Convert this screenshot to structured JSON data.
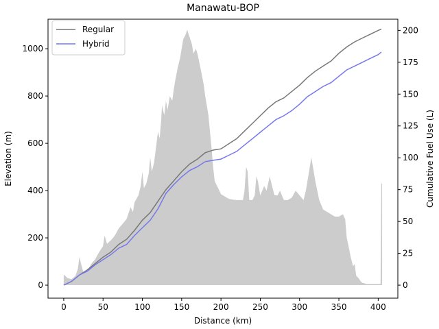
{
  "chart_data": {
    "type": "line",
    "title": "Manawatu-BOP",
    "xlabel": "Distance (km)",
    "ylabel_left": "Elevation (m)",
    "ylabel_right": "Cumulative Fuel Use (L)",
    "xlim": [
      -20,
      425
    ],
    "ylim_left": [
      -55,
      1125
    ],
    "ylim_right": [
      -10.2,
      208.8
    ],
    "x_ticks": [
      0,
      50,
      100,
      150,
      200,
      250,
      300,
      350,
      400
    ],
    "y_ticks_left": [
      0,
      200,
      400,
      600,
      800,
      1000
    ],
    "y_ticks_right": [
      0,
      25,
      50,
      75,
      100,
      125,
      150,
      175,
      200
    ],
    "grid": false,
    "legend_position": "top-left",
    "elevation_profile": {
      "color": "#cccccc",
      "points": [
        [
          0,
          45
        ],
        [
          5,
          30
        ],
        [
          10,
          25
        ],
        [
          15,
          40
        ],
        [
          18,
          70
        ],
        [
          20,
          120
        ],
        [
          22,
          90
        ],
        [
          25,
          55
        ],
        [
          30,
          60
        ],
        [
          35,
          90
        ],
        [
          40,
          110
        ],
        [
          45,
          140
        ],
        [
          50,
          165
        ],
        [
          52,
          210
        ],
        [
          55,
          175
        ],
        [
          60,
          190
        ],
        [
          65,
          210
        ],
        [
          70,
          240
        ],
        [
          75,
          260
        ],
        [
          80,
          280
        ],
        [
          85,
          330
        ],
        [
          88,
          310
        ],
        [
          90,
          350
        ],
        [
          95,
          380
        ],
        [
          98,
          420
        ],
        [
          100,
          480
        ],
        [
          102,
          410
        ],
        [
          105,
          430
        ],
        [
          108,
          470
        ],
        [
          110,
          540
        ],
        [
          112,
          480
        ],
        [
          115,
          520
        ],
        [
          118,
          600
        ],
        [
          120,
          650
        ],
        [
          122,
          620
        ],
        [
          124,
          700
        ],
        [
          125,
          760
        ],
        [
          127,
          730
        ],
        [
          128,
          720
        ],
        [
          130,
          780
        ],
        [
          132,
          740
        ],
        [
          135,
          800
        ],
        [
          138,
          780
        ],
        [
          140,
          830
        ],
        [
          142,
          870
        ],
        [
          145,
          920
        ],
        [
          148,
          960
        ],
        [
          150,
          1000
        ],
        [
          152,
          1040
        ],
        [
          155,
          1060
        ],
        [
          157,
          1080
        ],
        [
          160,
          1050
        ],
        [
          163,
          1020
        ],
        [
          165,
          980
        ],
        [
          168,
          1000
        ],
        [
          170,
          980
        ],
        [
          172,
          950
        ],
        [
          175,
          900
        ],
        [
          178,
          850
        ],
        [
          180,
          800
        ],
        [
          182,
          760
        ],
        [
          184,
          720
        ],
        [
          186,
          650
        ],
        [
          188,
          580
        ],
        [
          190,
          500
        ],
        [
          192,
          440
        ],
        [
          195,
          420
        ],
        [
          198,
          400
        ],
        [
          200,
          385
        ],
        [
          205,
          375
        ],
        [
          210,
          365
        ],
        [
          215,
          362
        ],
        [
          220,
          360
        ],
        [
          225,
          360
        ],
        [
          228,
          360
        ],
        [
          230,
          400
        ],
        [
          232,
          500
        ],
        [
          234,
          480
        ],
        [
          236,
          360
        ],
        [
          240,
          360
        ],
        [
          243,
          380
        ],
        [
          245,
          460
        ],
        [
          247,
          440
        ],
        [
          250,
          380
        ],
        [
          255,
          420
        ],
        [
          258,
          400
        ],
        [
          262,
          460
        ],
        [
          265,
          420
        ],
        [
          268,
          380
        ],
        [
          272,
          380
        ],
        [
          275,
          400
        ],
        [
          280,
          360
        ],
        [
          285,
          360
        ],
        [
          290,
          370
        ],
        [
          295,
          400
        ],
        [
          300,
          380
        ],
        [
          305,
          360
        ],
        [
          308,
          400
        ],
        [
          312,
          480
        ],
        [
          315,
          540
        ],
        [
          318,
          480
        ],
        [
          320,
          440
        ],
        [
          325,
          360
        ],
        [
          330,
          320
        ],
        [
          335,
          310
        ],
        [
          340,
          300
        ],
        [
          345,
          290
        ],
        [
          350,
          290
        ],
        [
          355,
          300
        ],
        [
          358,
          280
        ],
        [
          360,
          200
        ],
        [
          362,
          170
        ],
        [
          365,
          120
        ],
        [
          368,
          80
        ],
        [
          370,
          90
        ],
        [
          372,
          40
        ],
        [
          375,
          30
        ],
        [
          378,
          15
        ],
        [
          380,
          10
        ],
        [
          385,
          5
        ],
        [
          390,
          5
        ],
        [
          395,
          5
        ],
        [
          400,
          5
        ],
        [
          403,
          5
        ],
        [
          404,
          430
        ],
        [
          405,
          430
        ]
      ]
    },
    "series": [
      {
        "name": "Regular",
        "color": "#777777",
        "axis": "right",
        "points": [
          [
            0,
            0
          ],
          [
            10,
            3
          ],
          [
            20,
            8
          ],
          [
            30,
            12
          ],
          [
            40,
            17
          ],
          [
            50,
            22
          ],
          [
            60,
            26
          ],
          [
            70,
            32
          ],
          [
            80,
            36
          ],
          [
            90,
            43
          ],
          [
            100,
            51
          ],
          [
            110,
            57
          ],
          [
            120,
            66
          ],
          [
            130,
            75
          ],
          [
            140,
            82
          ],
          [
            150,
            89
          ],
          [
            160,
            95
          ],
          [
            170,
            99
          ],
          [
            180,
            104
          ],
          [
            190,
            106
          ],
          [
            200,
            107
          ],
          [
            210,
            111
          ],
          [
            220,
            115
          ],
          [
            230,
            121
          ],
          [
            240,
            127
          ],
          [
            250,
            133
          ],
          [
            260,
            139
          ],
          [
            270,
            144
          ],
          [
            280,
            147
          ],
          [
            290,
            152
          ],
          [
            300,
            157
          ],
          [
            310,
            163
          ],
          [
            320,
            168
          ],
          [
            330,
            172
          ],
          [
            340,
            176
          ],
          [
            350,
            182
          ],
          [
            360,
            187
          ],
          [
            370,
            191
          ],
          [
            380,
            194
          ],
          [
            390,
            197
          ],
          [
            400,
            200
          ],
          [
            404,
            201
          ]
        ]
      },
      {
        "name": "Hybrid",
        "color": "#7777ee",
        "axis": "right",
        "points": [
          [
            0,
            0
          ],
          [
            10,
            3
          ],
          [
            20,
            8
          ],
          [
            30,
            11
          ],
          [
            40,
            16
          ],
          [
            50,
            20
          ],
          [
            60,
            24
          ],
          [
            70,
            29
          ],
          [
            80,
            32
          ],
          [
            90,
            39
          ],
          [
            100,
            45
          ],
          [
            110,
            51
          ],
          [
            120,
            60
          ],
          [
            130,
            72
          ],
          [
            140,
            79
          ],
          [
            150,
            85
          ],
          [
            160,
            90
          ],
          [
            170,
            93
          ],
          [
            180,
            97
          ],
          [
            190,
            98
          ],
          [
            200,
            99
          ],
          [
            210,
            102
          ],
          [
            220,
            105
          ],
          [
            230,
            110
          ],
          [
            240,
            115
          ],
          [
            250,
            120
          ],
          [
            260,
            125
          ],
          [
            270,
            130
          ],
          [
            280,
            133
          ],
          [
            290,
            137
          ],
          [
            300,
            142
          ],
          [
            310,
            148
          ],
          [
            320,
            152
          ],
          [
            330,
            156
          ],
          [
            340,
            159
          ],
          [
            350,
            164
          ],
          [
            360,
            169
          ],
          [
            370,
            172
          ],
          [
            380,
            175
          ],
          [
            390,
            178
          ],
          [
            400,
            181
          ],
          [
            404,
            183
          ]
        ]
      }
    ]
  }
}
